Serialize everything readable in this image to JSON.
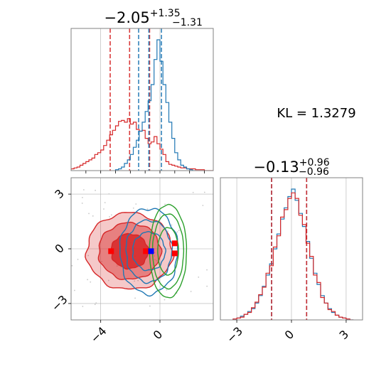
{
  "chart_data": [
    {
      "panel": "marginal-x",
      "type": "step-histogram",
      "title": {
        "main": "−2.05",
        "sup": "+1.35",
        "sub": "−1.31"
      },
      "xlim": [
        -6,
        3.6
      ],
      "grid": true,
      "series": [
        {
          "color": "#d62728",
          "bins": [
            -6.0,
            -5.8,
            -5.6,
            -5.4,
            -5.2,
            -5.0,
            -4.8,
            -4.6,
            -4.4,
            -4.2,
            -4.0,
            -3.8,
            -3.6,
            -3.4,
            -3.2,
            -3.0,
            -2.8,
            -2.6,
            -2.4,
            -2.2,
            -2.0,
            -1.8,
            -1.6,
            -1.4,
            -1.2,
            -1.0,
            -0.8,
            -0.6,
            -0.4,
            -0.2,
            0.0,
            0.2,
            0.4,
            0.6,
            0.8,
            1.0,
            1.2,
            1.4,
            1.6,
            1.8,
            2.0,
            2.2,
            2.4,
            2.6,
            2.8,
            3.0,
            3.2,
            3.4
          ],
          "counts": [
            2,
            3,
            4,
            6,
            8,
            10,
            12,
            14,
            18,
            20,
            23,
            28,
            34,
            40,
            45,
            50,
            55,
            56,
            54,
            58,
            52,
            54,
            46,
            44,
            45,
            36,
            30,
            32,
            38,
            30,
            24,
            18,
            10,
            7,
            6,
            5,
            4,
            3,
            3,
            2,
            2,
            2,
            1,
            1,
            1,
            0,
            0,
            0
          ],
          "quantiles": [
            -3.36,
            -2.05,
            -0.7
          ]
        },
        {
          "color": "#1f77b4",
          "bins": [
            -3.0,
            -2.8,
            -2.6,
            -2.4,
            -2.2,
            -2.0,
            -1.8,
            -1.6,
            -1.4,
            -1.2,
            -1.0,
            -0.8,
            -0.6,
            -0.4,
            -0.2,
            0.0,
            0.2,
            0.4,
            0.6,
            0.8,
            1.0,
            1.2,
            1.4,
            1.6,
            1.8,
            2.0,
            2.2
          ],
          "counts": [
            1,
            2,
            4,
            8,
            12,
            18,
            26,
            34,
            44,
            54,
            66,
            78,
            96,
            124,
            146,
            122,
            96,
            76,
            54,
            36,
            20,
            12,
            6,
            4,
            2,
            1,
            0
          ],
          "quantiles": [
            -1.44,
            -0.75,
            0.1
          ]
        }
      ]
    },
    {
      "panel": "joint",
      "type": "contour",
      "xlim": [
        -6,
        3.6
      ],
      "ylim": [
        -3.9,
        3.9
      ],
      "xticks": [
        -4,
        0
      ],
      "yticks": [
        -3,
        0,
        3
      ],
      "xticklabels": [
        "−4",
        "0"
      ],
      "yticklabels": [
        "−3",
        "0",
        "3"
      ],
      "grid": true,
      "series": [
        {
          "color": "#d62728",
          "fill": true,
          "center": [
            -2.05,
            -0.13
          ],
          "levels": [
            [
              2.9,
              2.1
            ],
            [
              2.1,
              1.55
            ],
            [
              1.25,
              0.95
            ]
          ]
        },
        {
          "color": "#1f77b4",
          "fill": false,
          "center": [
            -0.75,
            -0.13
          ],
          "levels": [
            [
              1.1,
              1.05
            ],
            [
              1.55,
              1.7
            ],
            [
              1.95,
              2.35
            ]
          ]
        },
        {
          "color": "#2ca02c",
          "fill": false,
          "center": [
            0.55,
            -0.13
          ],
          "levels": [
            [
              0.7,
              1.3
            ],
            [
              1.05,
              2.05
            ],
            [
              1.25,
              2.55
            ]
          ]
        }
      ],
      "markers": [
        {
          "color": "#ff0000",
          "points": [
            [
              -3.3,
              -0.13
            ],
            [
              -0.95,
              -0.13
            ],
            [
              1.0,
              0.3
            ],
            [
              1.0,
              -0.25
            ]
          ]
        },
        {
          "color": "#0000ff",
          "points": [
            [
              -0.6,
              -0.13
            ]
          ]
        }
      ]
    },
    {
      "panel": "marginal-y",
      "type": "step-histogram",
      "title": {
        "main": "−0.13",
        "sup": "+0.96",
        "sub": "−0.96"
      },
      "xlim": [
        -3.9,
        3.9
      ],
      "xticks": [
        -3,
        0,
        3
      ],
      "xticklabels": [
        "−3",
        "0",
        "3"
      ],
      "grid": true,
      "series": [
        {
          "color": "#1f77b4",
          "bins": [
            -3.2,
            -3.0,
            -2.8,
            -2.6,
            -2.4,
            -2.2,
            -2.0,
            -1.8,
            -1.6,
            -1.4,
            -1.2,
            -1.0,
            -0.8,
            -0.6,
            -0.4,
            -0.2,
            0.0,
            0.2,
            0.4,
            0.6,
            0.8,
            1.0,
            1.2,
            1.4,
            1.6,
            1.8,
            2.0,
            2.2,
            2.4,
            2.6,
            2.8,
            3.0,
            3.2
          ],
          "counts": [
            1,
            2,
            4,
            6,
            9,
            12,
            18,
            26,
            36,
            48,
            60,
            76,
            92,
            108,
            120,
            132,
            140,
            128,
            114,
            100,
            84,
            66,
            50,
            38,
            26,
            18,
            12,
            8,
            5,
            3,
            2,
            1,
            0
          ],
          "quantiles": [
            -1.09,
            0.83
          ]
        },
        {
          "color": "#d62728",
          "bins": [
            -3.2,
            -3.0,
            -2.8,
            -2.6,
            -2.4,
            -2.2,
            -2.0,
            -1.8,
            -1.6,
            -1.4,
            -1.2,
            -1.0,
            -0.8,
            -0.6,
            -0.4,
            -0.2,
            0.0,
            0.2,
            0.4,
            0.6,
            0.8,
            1.0,
            1.2,
            1.4,
            1.6,
            1.8,
            2.0,
            2.2,
            2.4,
            2.6,
            2.8,
            3.0,
            3.2
          ],
          "counts": [
            1,
            2,
            3,
            6,
            8,
            13,
            19,
            27,
            35,
            50,
            58,
            78,
            90,
            110,
            118,
            130,
            136,
            130,
            112,
            102,
            82,
            68,
            48,
            40,
            24,
            18,
            11,
            9,
            5,
            3,
            2,
            1,
            0
          ],
          "quantiles": [
            -1.09,
            0.83
          ]
        }
      ]
    }
  ],
  "annotation": {
    "kl_label": "KL = 1.3279"
  },
  "colors": {
    "red": "#d62728",
    "blue": "#1f77b4",
    "green": "#2ca02c",
    "grid": "#b0b0b0",
    "quantile_merge": "#8b2e4e"
  }
}
